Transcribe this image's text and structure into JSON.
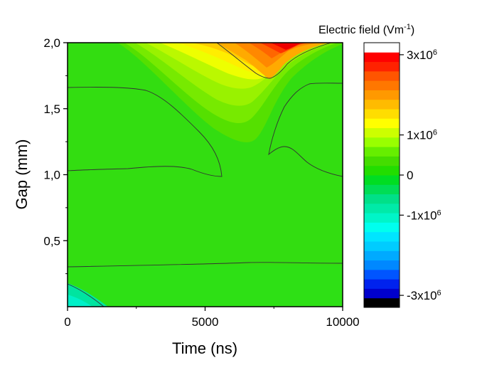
{
  "chart_data": {
    "type": "heatmap",
    "title": "",
    "xlabel": "Time (ns)",
    "ylabel": "Gap (mm)",
    "xlim": [
      0,
      10000
    ],
    "ylim": [
      0,
      2.0
    ],
    "x_ticks": [
      {
        "value": 0,
        "label": "0"
      },
      {
        "value": 5000,
        "label": "5000"
      },
      {
        "value": 10000,
        "label": "10000"
      }
    ],
    "y_ticks": [
      {
        "value": 0.5,
        "label": "0,5"
      },
      {
        "value": 1.0,
        "label": "1,0"
      },
      {
        "value": 1.5,
        "label": "1,5"
      },
      {
        "value": 2.0,
        "label": "2,0"
      }
    ],
    "colorbar": {
      "title_main": "Electric field (Vm",
      "title_exp": "-1",
      "title_close": ")",
      "range": [
        -3300000.0,
        3300000.0
      ],
      "levels_bottom_to_top": [
        "#000000",
        "#0000cc",
        "#0022ee",
        "#0055ff",
        "#0088ff",
        "#00aaff",
        "#00ccff",
        "#00e5ff",
        "#00ffee",
        "#00f5c8",
        "#00eaa8",
        "#00e088",
        "#00dd55",
        "#00dd22",
        "#22dd00",
        "#44dd00",
        "#66ee00",
        "#99ff00",
        "#ccff00",
        "#ffff00",
        "#ffdd00",
        "#ffbb00",
        "#ff9900",
        "#ff7700",
        "#ff5500",
        "#ff2200",
        "#ff0000",
        "#ffffff"
      ],
      "ticks": [
        {
          "value": 3000000,
          "base": "3x10",
          "exp": "6"
        },
        {
          "value": 1000000,
          "base": "1x10",
          "exp": "6"
        },
        {
          "value": 0,
          "base": "0",
          "exp": ""
        },
        {
          "value": -1000000,
          "base": "-1x10",
          "exp": "6"
        },
        {
          "value": -3000000,
          "base": "-3x10",
          "exp": "6"
        }
      ]
    }
  }
}
